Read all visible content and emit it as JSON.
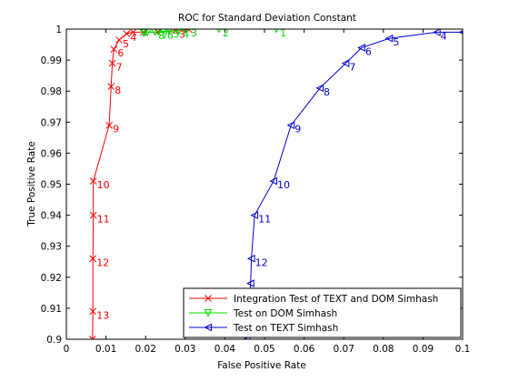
{
  "chart_data": {
    "type": "line",
    "title": "ROC for Standard Deviation Constant",
    "xlabel": "False Positive Rate",
    "ylabel": "True Positive Rate",
    "xlim": [
      0,
      0.1
    ],
    "ylim": [
      0.9,
      1.0
    ],
    "xticks": [
      "0",
      "0.01",
      "0.02",
      "0.03",
      "0.04",
      "0.05",
      "0.06",
      "0.07",
      "0.08",
      "0.09",
      "0.1"
    ],
    "yticks": [
      "0.9",
      "0.91",
      "0.92",
      "0.93",
      "0.94",
      "0.95",
      "0.96",
      "0.97",
      "0.98",
      "0.99",
      "1"
    ],
    "grid": false,
    "legend_position": "bottom-right",
    "series": [
      {
        "name": "Integration Test of TEXT and DOM Simhash",
        "color": "#ff0000",
        "marker": "x",
        "points": [
          {
            "x": 0.0066,
            "y": 0.9,
            "label": ""
          },
          {
            "x": 0.0067,
            "y": 0.909,
            "label": "13"
          },
          {
            "x": 0.0067,
            "y": 0.926,
            "label": "12"
          },
          {
            "x": 0.0068,
            "y": 0.94,
            "label": "11"
          },
          {
            "x": 0.0068,
            "y": 0.951,
            "label": "10"
          },
          {
            "x": 0.0108,
            "y": 0.969,
            "label": "9"
          },
          {
            "x": 0.0113,
            "y": 0.9815,
            "label": "8"
          },
          {
            "x": 0.0116,
            "y": 0.989,
            "label": "7"
          },
          {
            "x": 0.012,
            "y": 0.9935,
            "label": "6"
          },
          {
            "x": 0.0133,
            "y": 0.9965,
            "label": "5"
          },
          {
            "x": 0.0152,
            "y": 0.9985,
            "label": "4"
          },
          {
            "x": 0.0168,
            "y": 0.999,
            "label": ""
          },
          {
            "x": 0.0195,
            "y": 0.999,
            "label": ""
          },
          {
            "x": 0.023,
            "y": 0.999,
            "label": ""
          },
          {
            "x": 0.0275,
            "y": 0.9995,
            "label": "3"
          },
          {
            "x": 0.031,
            "y": 0.9998,
            "label": ""
          }
        ]
      },
      {
        "name": "Test on DOM Simhash",
        "color": "#00dd00",
        "marker": "triangle-down",
        "points": [
          {
            "x": 0.053,
            "y": 1.0,
            "label": "1"
          },
          {
            "x": 0.0385,
            "y": 1.0,
            "label": "2"
          },
          {
            "x": 0.0305,
            "y": 1.0,
            "label": "3"
          },
          {
            "x": 0.0285,
            "y": 0.9995,
            "label": "4"
          },
          {
            "x": 0.026,
            "y": 0.9995,
            "label": "5"
          },
          {
            "x": 0.0245,
            "y": 0.9993,
            "label": "6"
          },
          {
            "x": 0.0232,
            "y": 0.9992,
            "label": "7"
          },
          {
            "x": 0.0223,
            "y": 0.9991,
            "label": "8"
          },
          {
            "x": 0.0205,
            "y": 0.999,
            "label": ""
          },
          {
            "x": 0.0198,
            "y": 0.9989,
            "label": ""
          },
          {
            "x": 0.0195,
            "y": 0.9988,
            "label": ""
          }
        ]
      },
      {
        "name": "Test on TEXT Simhash",
        "color": "#0000cc",
        "marker": "triangle-left",
        "points": [
          {
            "x": 0.1,
            "y": 0.999,
            "label": ""
          },
          {
            "x": 0.0935,
            "y": 0.999,
            "label": "4"
          },
          {
            "x": 0.0815,
            "y": 0.997,
            "label": "5"
          },
          {
            "x": 0.0745,
            "y": 0.994,
            "label": "6"
          },
          {
            "x": 0.0705,
            "y": 0.989,
            "label": "7"
          },
          {
            "x": 0.064,
            "y": 0.981,
            "label": "8"
          },
          {
            "x": 0.0567,
            "y": 0.969,
            "label": "9"
          },
          {
            "x": 0.0523,
            "y": 0.951,
            "label": "10"
          },
          {
            "x": 0.0475,
            "y": 0.94,
            "label": "11"
          },
          {
            "x": 0.0467,
            "y": 0.926,
            "label": "12"
          },
          {
            "x": 0.0465,
            "y": 0.918,
            "label": ""
          },
          {
            "x": 0.046,
            "y": 0.905,
            "label": ""
          },
          {
            "x": 0.0455,
            "y": 0.9,
            "label": ""
          }
        ]
      }
    ]
  }
}
